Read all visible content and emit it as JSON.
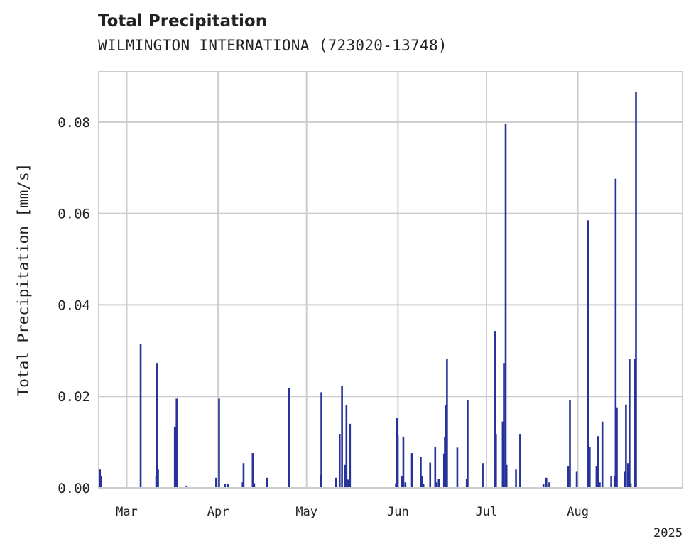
{
  "chart_data": {
    "type": "bar",
    "title": "Total Precipitation",
    "subtitle": "WILMINGTON INTERNATIONA (723020-13748)",
    "xlabel": "",
    "ylabel": "Total Precipitation [mm/s]",
    "ylim": [
      0,
      0.091
    ],
    "yticks": [
      0.0,
      0.02,
      0.04,
      0.06,
      0.08
    ],
    "ytick_labels": [
      "0.00",
      "0.02",
      "0.04",
      "0.06",
      "0.08"
    ],
    "xlim": [
      -9.5,
      188.5
    ],
    "xticks": [
      {
        "day": 0,
        "label": "Mar"
      },
      {
        "day": 31,
        "label": "Apr"
      },
      {
        "day": 61,
        "label": "May"
      },
      {
        "day": 92,
        "label": "Jun"
      },
      {
        "day": 122,
        "label": "Jul"
      },
      {
        "day": 153,
        "label": "Aug"
      }
    ],
    "year_label": "2025",
    "x_unit": "days since 2025-03-01",
    "grid": true,
    "color": "#26339a",
    "series": [
      {
        "name": "Total Precipitation",
        "points": [
          [
            -9.4,
            0.001
          ],
          [
            -9.1,
            0.004
          ],
          [
            -8.8,
            0.0025
          ],
          [
            4.7,
            0.0315
          ],
          [
            10.0,
            0.0025
          ],
          [
            10.3,
            0.0273
          ],
          [
            10.6,
            0.004
          ],
          [
            16.3,
            0.0133
          ],
          [
            16.9,
            0.0195
          ],
          [
            20.3,
            0.0005
          ],
          [
            30.3,
            0.0022
          ],
          [
            31.3,
            0.0195
          ],
          [
            33.3,
            0.0008
          ],
          [
            34.3,
            0.0008
          ],
          [
            39.3,
            0.0012
          ],
          [
            39.6,
            0.0054
          ],
          [
            42.7,
            0.0076
          ],
          [
            43.2,
            0.001
          ],
          [
            47.5,
            0.0022
          ],
          [
            55.0,
            0.0218
          ],
          [
            65.7,
            0.0028
          ],
          [
            66.0,
            0.0209
          ],
          [
            71.0,
            0.0022
          ],
          [
            72.2,
            0.0118
          ],
          [
            73.0,
            0.0223
          ],
          [
            73.9,
            0.005
          ],
          [
            74.5,
            0.018
          ],
          [
            75.1,
            0.0018
          ],
          [
            75.7,
            0.014
          ],
          [
            91.3,
            0.001
          ],
          [
            91.6,
            0.0153
          ],
          [
            91.9,
            0.0115
          ],
          [
            93.3,
            0.0025
          ],
          [
            93.8,
            0.0112
          ],
          [
            94.5,
            0.0012
          ],
          [
            96.7,
            0.0076
          ],
          [
            99.7,
            0.0068
          ],
          [
            100.2,
            0.0025
          ],
          [
            100.6,
            0.0008
          ],
          [
            102.9,
            0.0055
          ],
          [
            104.6,
            0.009
          ],
          [
            105.1,
            0.0012
          ],
          [
            105.8,
            0.002
          ],
          [
            107.6,
            0.0075
          ],
          [
            107.9,
            0.0112
          ],
          [
            108.3,
            0.018
          ],
          [
            108.6,
            0.0282
          ],
          [
            112.1,
            0.0088
          ],
          [
            115.3,
            0.002
          ],
          [
            115.6,
            0.0191
          ],
          [
            120.7,
            0.0054
          ],
          [
            124.9,
            0.0343
          ],
          [
            125.2,
            0.0118
          ],
          [
            127.5,
            0.0145
          ],
          [
            127.9,
            0.0273
          ],
          [
            128.5,
            0.0795
          ],
          [
            128.8,
            0.005
          ],
          [
            132.0,
            0.004
          ],
          [
            133.4,
            0.0118
          ],
          [
            141.3,
            0.0008
          ],
          [
            142.3,
            0.0022
          ],
          [
            143.3,
            0.0012
          ],
          [
            149.7,
            0.0048
          ],
          [
            150.3,
            0.0191
          ],
          [
            152.6,
            0.0035
          ],
          [
            156.5,
            0.0585
          ],
          [
            157.0,
            0.009
          ],
          [
            159.3,
            0.0048
          ],
          [
            159.8,
            0.0113
          ],
          [
            160.4,
            0.0012
          ],
          [
            161.3,
            0.0145
          ],
          [
            164.3,
            0.0025
          ],
          [
            165.4,
            0.0025
          ],
          [
            165.8,
            0.0676
          ],
          [
            166.2,
            0.0176
          ],
          [
            168.8,
            0.0035
          ],
          [
            169.3,
            0.0182
          ],
          [
            170.0,
            0.0054
          ],
          [
            170.5,
            0.0282
          ],
          [
            170.9,
            0.001
          ],
          [
            172.3,
            0.0282
          ],
          [
            172.7,
            0.0866
          ]
        ]
      }
    ]
  }
}
